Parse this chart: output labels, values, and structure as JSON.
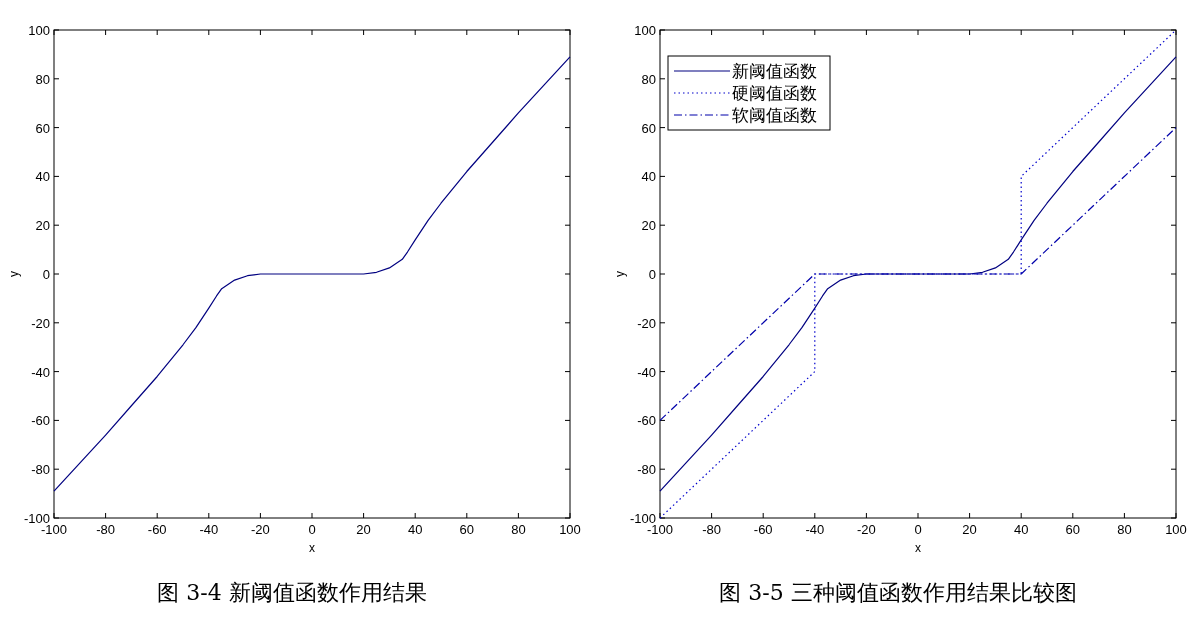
{
  "chart_data": [
    {
      "type": "line",
      "title": "图 3-4 新阈值函数作用结果",
      "xlabel": "x",
      "ylabel": "y",
      "xlim": [
        -100,
        100
      ],
      "ylim": [
        -100,
        100
      ],
      "xticks": [
        -100,
        -80,
        -60,
        -40,
        -20,
        0,
        20,
        40,
        60,
        80,
        100
      ],
      "yticks": [
        -100,
        -80,
        -60,
        -40,
        -20,
        0,
        20,
        40,
        60,
        80,
        100
      ],
      "grid": false,
      "legend": false,
      "series": [
        {
          "color": "#000080",
          "line_style": "solid",
          "x": [
            -100,
            -90,
            -80,
            -70,
            -60,
            -50,
            -45,
            -40,
            -37,
            -35,
            -30,
            -25,
            -20,
            0,
            20,
            25,
            30,
            35,
            37,
            40,
            45,
            50,
            60,
            70,
            80,
            90,
            100
          ],
          "values": [
            -89,
            -77.5,
            -66,
            -54,
            -42,
            -29,
            -22,
            -14,
            -9,
            -6,
            -2.5,
            -0.7,
            0,
            0,
            0,
            0.7,
            2.5,
            6,
            9,
            14,
            22,
            29,
            42,
            54,
            66,
            77.5,
            89
          ]
        }
      ]
    },
    {
      "type": "line",
      "title": "图 3-5 三种阈值函数作用结果比较图",
      "xlabel": "x",
      "ylabel": "y",
      "xlim": [
        -100,
        100
      ],
      "ylim": [
        -100,
        100
      ],
      "xticks": [
        -100,
        -80,
        -60,
        -40,
        -20,
        0,
        20,
        40,
        60,
        80,
        100
      ],
      "yticks": [
        -100,
        -80,
        -60,
        -40,
        -20,
        0,
        20,
        40,
        60,
        80,
        100
      ],
      "grid": false,
      "legend": "top left",
      "series": [
        {
          "name": "新阈值函数",
          "color": "#000080",
          "line_style": "solid",
          "x": [
            -100,
            -90,
            -80,
            -70,
            -60,
            -50,
            -45,
            -40,
            -37,
            -35,
            -30,
            -25,
            -20,
            0,
            20,
            25,
            30,
            35,
            37,
            40,
            45,
            50,
            60,
            70,
            80,
            90,
            100
          ],
          "values": [
            -89,
            -77.5,
            -66,
            -54,
            -42,
            -29,
            -22,
            -14,
            -9,
            -6,
            -2.5,
            -0.7,
            0,
            0,
            0,
            0.7,
            2.5,
            6,
            9,
            14,
            22,
            29,
            42,
            54,
            66,
            77.5,
            89
          ]
        },
        {
          "name": "硬阈值函数",
          "color": "#0000cc",
          "line_style": "dotted",
          "x": [
            -100,
            -40,
            -40,
            40,
            40,
            100
          ],
          "values": [
            -100,
            -40,
            0,
            0,
            40,
            100
          ]
        },
        {
          "name": "软阈值函数",
          "color": "#0000aa",
          "line_style": "dashdot",
          "x": [
            -100,
            -40,
            40,
            100
          ],
          "values": [
            -60,
            0,
            0,
            60
          ]
        }
      ]
    }
  ]
}
